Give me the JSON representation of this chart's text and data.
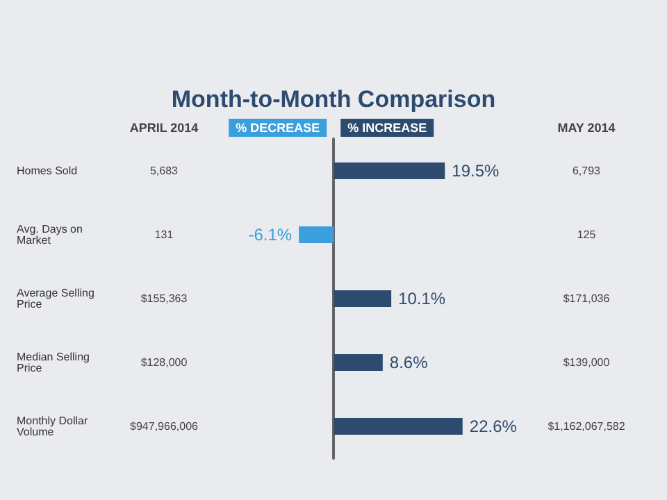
{
  "chart_data": {
    "type": "bar",
    "orientation": "horizontal",
    "title": "Month-to-Month Comparison",
    "categories": [
      "Homes Sold",
      "Avg. Days on Market",
      "Average Selling Price",
      "Median Selling Price",
      "Monthly Dollar Volume"
    ],
    "values": [
      19.5,
      -6.1,
      10.1,
      8.6,
      22.6
    ],
    "colors": [
      "#2d4b6e",
      "#3a9fdc",
      "#2d4b6e",
      "#2d4b6e",
      "#2d4b6e"
    ],
    "value_labels": [
      "19.5%",
      "-6.1%",
      "10.1%",
      "8.6%",
      "22.6%"
    ],
    "annotations": [
      "APRIL 2014",
      "% DECREASE",
      "% INCREASE",
      "MAY 2014",
      "5,683",
      "131",
      "$155,363",
      "$128,000",
      "$947,966,006",
      "6,793",
      "125",
      "$171,036",
      "$139,000",
      "$1,162,067,582"
    ]
  }
}
